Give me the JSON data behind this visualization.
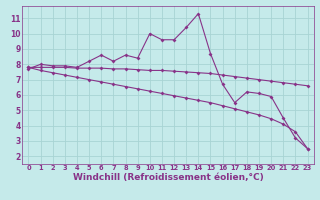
{
  "xlabel": "Windchill (Refroidissement éolien,°C)",
  "xlim": [
    -0.5,
    23.5
  ],
  "ylim": [
    1.5,
    11.8
  ],
  "yticks": [
    2,
    3,
    4,
    5,
    6,
    7,
    8,
    9,
    10,
    11
  ],
  "xticks": [
    0,
    1,
    2,
    3,
    4,
    5,
    6,
    7,
    8,
    9,
    10,
    11,
    12,
    13,
    14,
    15,
    16,
    17,
    18,
    19,
    20,
    21,
    22,
    23
  ],
  "background_color": "#c5eaea",
  "grid_color": "#a8d4d4",
  "line_color": "#883388",
  "line1_y": [
    7.7,
    8.0,
    7.9,
    7.9,
    7.8,
    8.2,
    8.6,
    8.2,
    8.6,
    8.4,
    10.0,
    9.6,
    9.6,
    10.4,
    11.3,
    8.7,
    6.7,
    5.5,
    6.2,
    6.1,
    5.9,
    4.5,
    3.2,
    2.5
  ],
  "line2_y": [
    7.8,
    7.8,
    7.8,
    7.8,
    7.75,
    7.75,
    7.75,
    7.7,
    7.7,
    7.65,
    7.6,
    7.6,
    7.55,
    7.5,
    7.45,
    7.4,
    7.3,
    7.2,
    7.1,
    7.0,
    6.9,
    6.8,
    6.7,
    6.6
  ],
  "line3_y": [
    7.8,
    7.6,
    7.45,
    7.3,
    7.15,
    7.0,
    6.85,
    6.7,
    6.55,
    6.4,
    6.25,
    6.1,
    5.95,
    5.8,
    5.65,
    5.5,
    5.3,
    5.1,
    4.9,
    4.7,
    4.45,
    4.1,
    3.6,
    2.5
  ],
  "tick_fontsize": 5.5,
  "xlabel_fontsize": 6.5,
  "markersize": 2.0,
  "linewidth": 0.8
}
